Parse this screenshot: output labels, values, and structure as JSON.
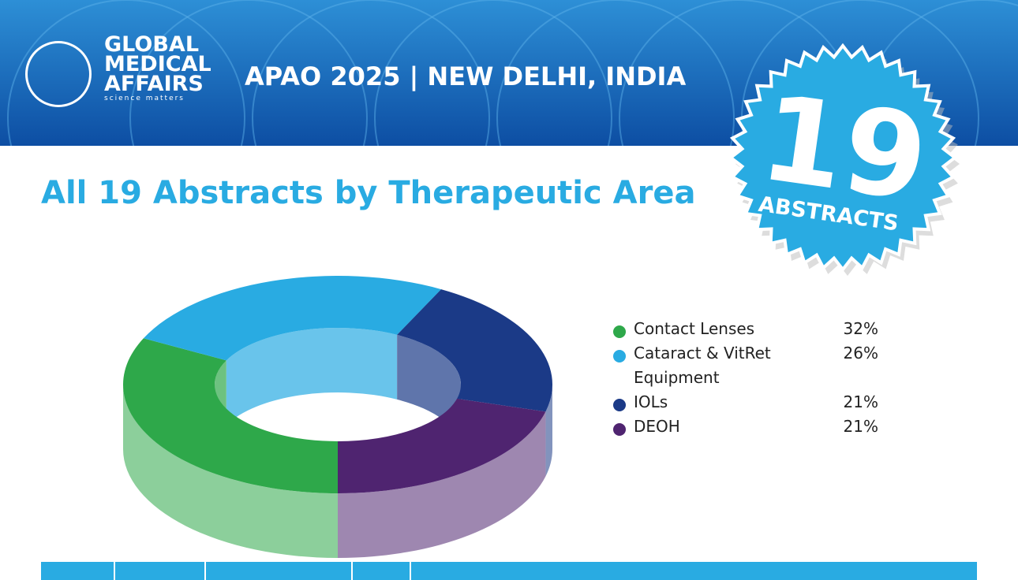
{
  "header": {
    "logo_lines": [
      "GLOBAL",
      "MEDICAL",
      "AFFAIRS"
    ],
    "logo_tagline": "science matters",
    "event": "APAO 2025 | NEW DELHI, INDIA"
  },
  "badge": {
    "number": "19",
    "label": "ABSTRACTS"
  },
  "chart_data": {
    "type": "donut",
    "title": "All 19 Abstracts by Therapeutic Area",
    "categories": [
      "Contact Lenses",
      "Cataract & VitRet Equipment",
      "IOLs",
      "DEOH"
    ],
    "values": [
      32,
      26,
      21,
      21
    ],
    "value_labels": [
      "32%",
      "26%",
      "21%",
      "21%"
    ],
    "colors": [
      "#2ea84a",
      "#29abe2",
      "#1b3a87",
      "#4f2470"
    ],
    "legend": "right"
  }
}
